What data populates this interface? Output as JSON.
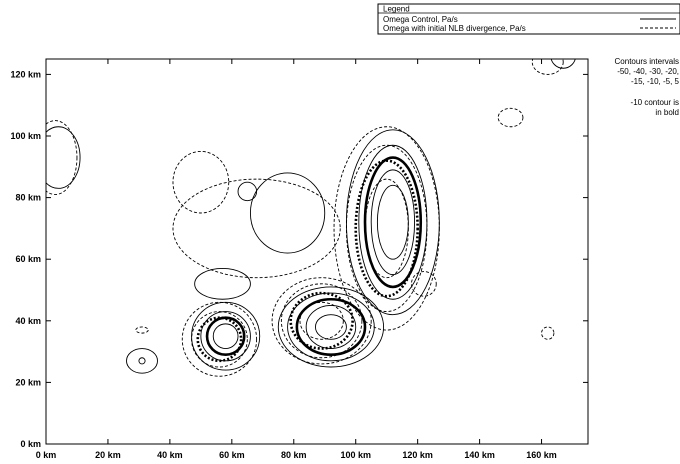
{
  "chart_data": {
    "type": "contour",
    "xlim": [
      0,
      175
    ],
    "ylim": [
      0,
      125
    ],
    "x_ticks": [
      {
        "value": 0,
        "label": "0 km"
      },
      {
        "value": 20,
        "label": "20 km"
      },
      {
        "value": 40,
        "label": "40 km"
      },
      {
        "value": 60,
        "label": "60 km"
      },
      {
        "value": 80,
        "label": "80 km"
      },
      {
        "value": 100,
        "label": "100 km"
      },
      {
        "value": 120,
        "label": "120 km"
      },
      {
        "value": 140,
        "label": "140 km"
      },
      {
        "value": 160,
        "label": "160 km"
      }
    ],
    "y_ticks": [
      {
        "value": 0,
        "label": "0 km"
      },
      {
        "value": 20,
        "label": "20 km"
      },
      {
        "value": 40,
        "label": "40 km"
      },
      {
        "value": 60,
        "label": "60 km"
      },
      {
        "value": 80,
        "label": "80 km"
      },
      {
        "value": 100,
        "label": "100 km"
      },
      {
        "value": 120,
        "label": "120 km"
      }
    ],
    "legend": {
      "title": "Legend",
      "entries": [
        {
          "label": "Omega Control, Pa/s",
          "style": "solid"
        },
        {
          "label": "Omega with initial NLB divergence, Pa/s",
          "style": "dashed"
        }
      ]
    },
    "notes": {
      "intervals_lines": [
        "Contours intervals",
        "-50, -40, -30, -20,",
        "-15, -10, -5, 5"
      ],
      "bold_lines": [
        "-10 contour is",
        "in bold"
      ]
    },
    "contour_levels": [
      -50,
      -40,
      -30,
      -20,
      -15,
      -10,
      -5,
      5
    ],
    "series": [
      {
        "name": "Omega Control, Pa/s",
        "style": "solid",
        "cells": [
          {
            "center": [
              112,
              72
            ],
            "rings": [
              {
                "level": 5,
                "rx": 15,
                "ry": 30
              },
              {
                "level": -5,
                "rx": 11,
                "ry": 25
              },
              {
                "level": -10,
                "rx": 9,
                "ry": 21
              },
              {
                "level": -15,
                "rx": 7,
                "ry": 17
              },
              {
                "level": -20,
                "rx": 5,
                "ry": 12
              }
            ]
          },
          {
            "center": [
              92,
              38
            ],
            "rings": [
              {
                "level": 5,
                "rx": 17,
                "ry": 13
              },
              {
                "level": -5,
                "rx": 14,
                "ry": 11
              },
              {
                "level": -10,
                "rx": 11,
                "ry": 9
              },
              {
                "level": -15,
                "rx": 8,
                "ry": 7
              },
              {
                "level": -20,
                "rx": 5,
                "ry": 4
              }
            ]
          },
          {
            "center": [
              58,
              35
            ],
            "rings": [
              {
                "level": 5,
                "rx": 11,
                "ry": 11
              },
              {
                "level": -5,
                "rx": 8,
                "ry": 8
              },
              {
                "level": -10,
                "rx": 6,
                "ry": 6
              },
              {
                "level": -15,
                "rx": 4,
                "ry": 4
              }
            ]
          },
          {
            "center": [
              4,
              93
            ],
            "rings": [
              {
                "level": 5,
                "rx": 7,
                "ry": 10
              }
            ]
          },
          {
            "center": [
              31,
              27
            ],
            "rings": [
              {
                "level": 5,
                "rx": 5,
                "ry": 4
              },
              {
                "level": -5,
                "rx": 1,
                "ry": 1
              }
            ]
          },
          {
            "center": [
              57,
              52
            ],
            "rings": [
              {
                "level": 5,
                "rx": 9,
                "ry": 5
              }
            ]
          },
          {
            "center": [
              78,
              75
            ],
            "rings": [
              {
                "level": 5,
                "rx": 12,
                "ry": 13
              }
            ]
          },
          {
            "center": [
              65,
              82
            ],
            "rings": [
              {
                "level": 5,
                "rx": 3,
                "ry": 3
              }
            ]
          },
          {
            "center": [
              167,
              126
            ],
            "rings": [
              {
                "level": 5,
                "rx": 4,
                "ry": 4
              }
            ]
          }
        ]
      },
      {
        "name": "Omega with initial NLB divergence, Pa/s",
        "style": "dashed",
        "cells": [
          {
            "center": [
              110,
              70
            ],
            "rings": [
              {
                "level": 5,
                "rx": 17,
                "ry": 33
              },
              {
                "level": -5,
                "rx": 13,
                "ry": 27
              },
              {
                "level": -10,
                "rx": 10,
                "ry": 22
              },
              {
                "level": -15,
                "rx": 7,
                "ry": 16
              }
            ]
          },
          {
            "center": [
              89,
              40
            ],
            "rings": [
              {
                "level": 5,
                "rx": 16,
                "ry": 14
              },
              {
                "level": -5,
                "rx": 13,
                "ry": 12
              },
              {
                "level": -10,
                "rx": 10,
                "ry": 9
              },
              {
                "level": -15,
                "rx": 7,
                "ry": 6
              }
            ]
          },
          {
            "center": [
              56,
              34
            ],
            "rings": [
              {
                "level": 5,
                "rx": 12,
                "ry": 12
              },
              {
                "level": -5,
                "rx": 9,
                "ry": 9
              },
              {
                "level": -10,
                "rx": 7,
                "ry": 7
              }
            ]
          },
          {
            "center": [
              68,
              70
            ],
            "rings": [
              {
                "level": 5,
                "rx": 27,
                "ry": 16
              }
            ]
          },
          {
            "center": [
              50,
              85
            ],
            "rings": [
              {
                "level": 5,
                "rx": 9,
                "ry": 10
              }
            ]
          },
          {
            "center": [
              3,
              93
            ],
            "rings": [
              {
                "level": 5,
                "rx": 7,
                "ry": 12
              }
            ]
          },
          {
            "center": [
              31,
              37
            ],
            "rings": [
              {
                "level": 5,
                "rx": 2,
                "ry": 1
              }
            ]
          },
          {
            "center": [
              150,
              106
            ],
            "rings": [
              {
                "level": 5,
                "rx": 4,
                "ry": 3
              }
            ]
          },
          {
            "center": [
              162,
              36
            ],
            "rings": [
              {
                "level": 5,
                "rx": 2,
                "ry": 2
              }
            ]
          },
          {
            "center": [
              162,
              124
            ],
            "rings": [
              {
                "level": 5,
                "rx": 5,
                "ry": 4
              }
            ]
          },
          {
            "center": [
              122,
              52
            ],
            "rings": [
              {
                "level": 5,
                "rx": 4,
                "ry": 4
              }
            ]
          }
        ]
      }
    ]
  }
}
